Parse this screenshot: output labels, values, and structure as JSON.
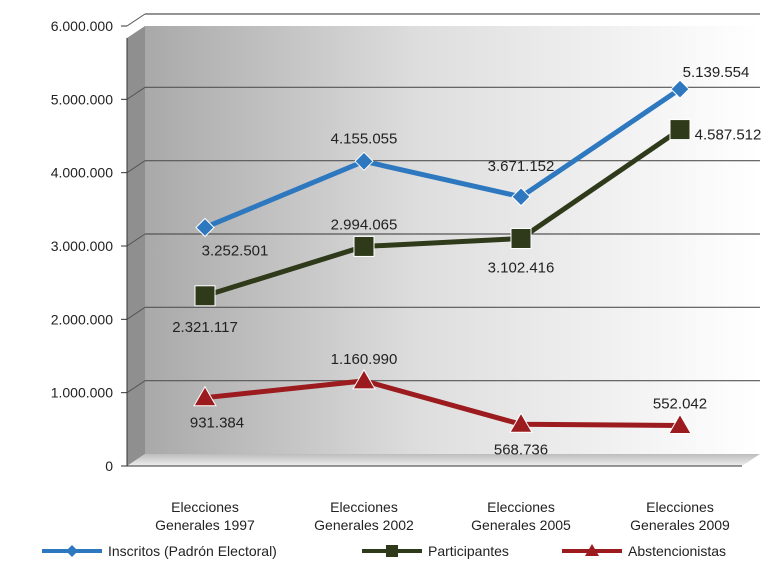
{
  "chart_data": {
    "type": "line",
    "title": "",
    "xlabel": "",
    "ylabel": "",
    "categories": [
      [
        "Elecciones",
        "Generales 1997"
      ],
      [
        "Elecciones",
        "Generales 2002"
      ],
      [
        "Elecciones",
        "Generales 2005"
      ],
      [
        "Elecciones",
        "Generales 2009"
      ]
    ],
    "ylim": [
      0,
      6000000
    ],
    "yticks": [
      0,
      1000000,
      2000000,
      3000000,
      4000000,
      5000000,
      6000000
    ],
    "ytick_labels": [
      "0",
      "1.000.000",
      "2.000.000",
      "3.000.000",
      "4.000.000",
      "5.000.000",
      "6.000.000"
    ],
    "grid": true,
    "legend_position": "bottom",
    "series": [
      {
        "name": "Inscritos (Padrón Electoral)",
        "color": "#2e78c0",
        "marker": "diamond",
        "values": [
          3252501,
          4155055,
          3671152,
          5139554
        ],
        "labels": [
          "3.252.501",
          "4.155.055",
          "3.671.152",
          "5.139.554"
        ]
      },
      {
        "name": "Participantes",
        "color": "#2f3a1a",
        "marker": "square",
        "values": [
          2321117,
          2994065,
          3102416,
          4587512
        ],
        "labels": [
          "2.321.117",
          "2.994.065",
          "3.102.416",
          "4.587.512"
        ]
      },
      {
        "name": "Abstencionistas",
        "color": "#9b1b1e",
        "marker": "triangle",
        "values": [
          931384,
          1160990,
          568736,
          552042
        ],
        "labels": [
          "931.384",
          "1.160.990",
          "568.736",
          "552.042"
        ]
      }
    ]
  }
}
